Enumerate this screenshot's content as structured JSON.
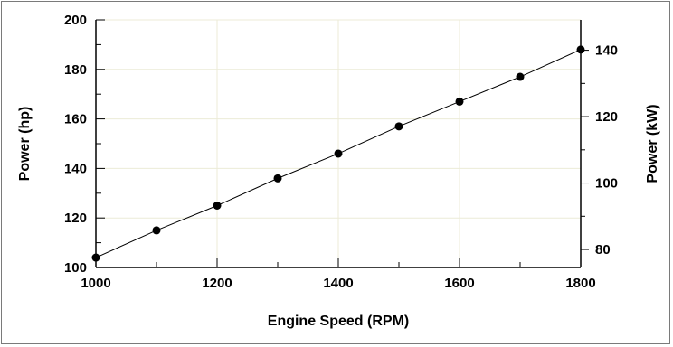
{
  "chart_data": {
    "type": "line",
    "title": "",
    "xlabel": "Engine Speed (RPM)",
    "ylabel": "Power (hp)",
    "ylabel_right": "Power (kW)",
    "xlim": [
      1000,
      1800
    ],
    "ylim": [
      100,
      200
    ],
    "ylim_right": [
      74.57,
      149.14
    ],
    "x_ticks": [
      "1000",
      "1200",
      "1400",
      "1600",
      "1800"
    ],
    "y_ticks": [
      "100",
      "120",
      "140",
      "160",
      "180",
      "200"
    ],
    "y_ticks_right": [
      "80",
      "100",
      "120",
      "140"
    ],
    "grid": true,
    "series": [
      {
        "x": [
          1000,
          1100,
          1200,
          1300,
          1400,
          1500,
          1600,
          1700,
          1800
        ],
        "values": [
          104,
          115,
          125,
          136,
          146,
          157,
          167,
          177,
          188
        ]
      }
    ],
    "colors": {
      "line": "#000000",
      "marker": "#000000",
      "grid": "#ecebd7",
      "axis": "#000000"
    }
  }
}
